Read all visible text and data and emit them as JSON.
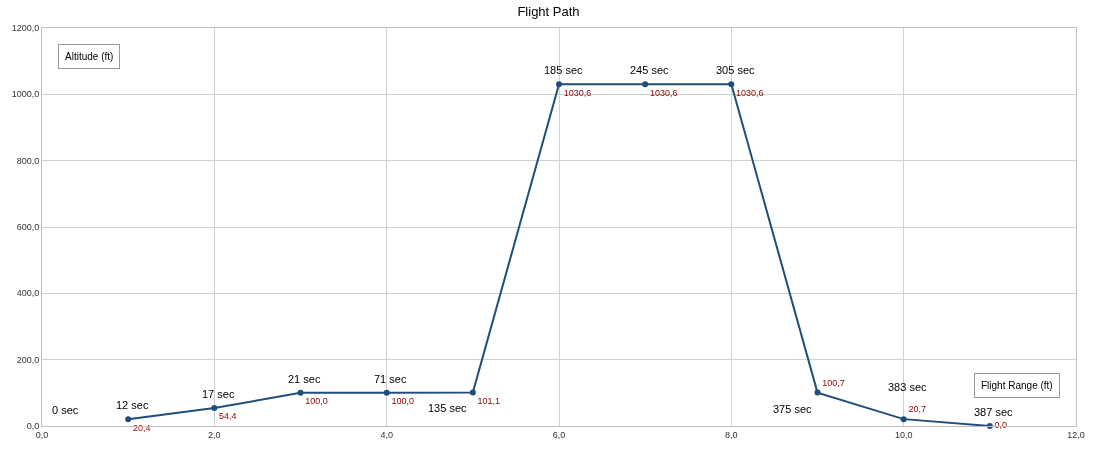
{
  "chart_data": {
    "type": "line",
    "title": "Flight Path",
    "xlabel": "Flight Range (ft)",
    "ylabel": "Altitude (ft)",
    "x": [
      1,
      2,
      3,
      4,
      5,
      6,
      7,
      8,
      9,
      10,
      11
    ],
    "series": [
      {
        "color": "#1f4e79",
        "values": [
          20.4,
          54.4,
          100.0,
          100.0,
          101.1,
          1030.6,
          1030.6,
          1030.6,
          100.7,
          20.7,
          0.0
        ],
        "value_labels": [
          "20,4",
          "54,4",
          "100,0",
          "100,0",
          "101,1",
          "1030,6",
          "1030,6",
          "1030,6",
          "100,7",
          "20,7",
          "0,0"
        ]
      }
    ],
    "annotations": [
      "0 sec",
      {
        "text": "12 sec",
        "x": 1,
        "y": 20.4
      },
      {
        "text": "17 sec",
        "x": 2,
        "y": 54.4
      },
      {
        "text": "21 sec",
        "x": 3,
        "y": 100.0
      },
      {
        "text": "71 sec",
        "x": 4,
        "y": 100.0
      },
      {
        "text": "135 sec",
        "x": 5,
        "y": 101.1
      },
      {
        "text": "185 sec",
        "x": 6,
        "y": 1030.6
      },
      {
        "text": "245 sec",
        "x": 7,
        "y": 1030.6
      },
      {
        "text": "305 sec",
        "x": 8,
        "y": 1030.6
      },
      {
        "text": "375 sec",
        "x": 9,
        "y": 100.7
      },
      {
        "text": "383 sec",
        "x": 10,
        "y": 20.7
      },
      {
        "text": "387 sec",
        "x": 11,
        "y": 0.0
      }
    ],
    "xlim": [
      0,
      12
    ],
    "xticks": [
      {
        "value": 0,
        "label": "0,0"
      },
      {
        "value": 2,
        "label": "2,0"
      },
      {
        "value": 4,
        "label": "4,0"
      },
      {
        "value": 6,
        "label": "6,0"
      },
      {
        "value": 8,
        "label": "8,0"
      },
      {
        "value": 10,
        "label": "10,0"
      },
      {
        "value": 12,
        "label": "12,0"
      }
    ],
    "ylim": [
      0,
      1200
    ],
    "yticks": [
      {
        "value": 0,
        "label": "0,0"
      },
      {
        "value": 200,
        "label": "200,0"
      },
      {
        "value": 400,
        "label": "400,0"
      },
      {
        "value": 600,
        "label": "600,0"
      },
      {
        "value": 800,
        "label": "800,0"
      },
      {
        "value": 1000,
        "label": "1000,0"
      },
      {
        "value": 1200,
        "label": "1200,0"
      }
    ],
    "grid": true,
    "legend": false,
    "marker": "circle",
    "line_style": "solid"
  }
}
